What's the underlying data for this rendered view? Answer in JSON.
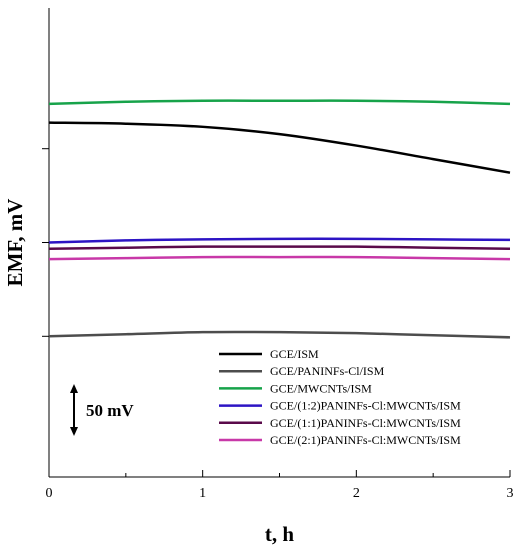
{
  "chart_data": {
    "type": "line",
    "title": "",
    "xlabel": "t, h",
    "ylabel": "EMF, mV",
    "xlim": [
      0,
      3
    ],
    "x_ticks": [
      "0",
      "1",
      "2",
      "3"
    ],
    "ylim": [
      -225,
      225
    ],
    "y_unit": "mV (relative, no printed tick values)",
    "grid": false,
    "legend_position": "bottom-right",
    "scale_bar": {
      "label": "50 mV",
      "value_mV": 50
    },
    "series": [
      {
        "name": "GCE/ISM",
        "color": "#000000",
        "x": [
          0,
          0.5,
          1,
          1.5,
          2,
          2.5,
          3
        ],
        "y": [
          115,
          114,
          111,
          104,
          93,
          80,
          67
        ]
      },
      {
        "name": "GCE/PANINFs-Cl/ISM",
        "color": "#4d4d4d",
        "x": [
          0,
          0.5,
          1,
          1.5,
          2,
          2.5,
          3
        ],
        "y": [
          -90,
          -88,
          -86,
          -86,
          -87,
          -89,
          -91
        ]
      },
      {
        "name": "GCE/MWCNTs/ISM",
        "color": "#17a34a",
        "x": [
          0,
          0.5,
          1,
          1.5,
          2,
          2.5,
          3
        ],
        "y": [
          133,
          135,
          136,
          136,
          136,
          135,
          133
        ]
      },
      {
        "name": "GCE/(1:2)PANINFs-Cl:MWCNTs/ISM",
        "color": "#2d14c4",
        "x": [
          0,
          0.5,
          1,
          1.5,
          2,
          2.5,
          3
        ],
        "y": [
          0,
          2,
          3,
          3.5,
          3.5,
          3,
          2.5
        ]
      },
      {
        "name": "GCE/(1:1)PANINFs-Cl:MWCNTs/ISM",
        "color": "#5a0a4a",
        "x": [
          0,
          0.5,
          1,
          1.5,
          2,
          2.5,
          3
        ],
        "y": [
          -6,
          -5,
          -4,
          -4,
          -4,
          -5,
          -6
        ]
      },
      {
        "name": "GCE/(2:1)PANINFs-Cl:MWCNTs/ISM",
        "color": "#c838a8",
        "x": [
          0,
          0.5,
          1,
          1.5,
          2,
          2.5,
          3
        ],
        "y": [
          -16,
          -15,
          -14,
          -14,
          -14,
          -15,
          -16
        ]
      }
    ]
  }
}
